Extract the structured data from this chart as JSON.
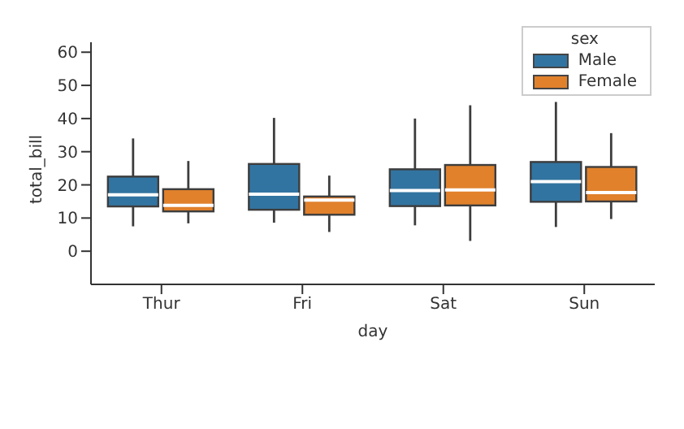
{
  "chart_data": {
    "type": "box",
    "xlabel": "day",
    "ylabel": "total_bill",
    "legend_title": "sex",
    "categories": [
      "Thur",
      "Fri",
      "Sat",
      "Sun"
    ],
    "series": [
      {
        "name": "Male",
        "color": "#3274a1",
        "boxes": [
          {
            "low": 7.5,
            "q1": 13.5,
            "median": 17,
            "q3": 22.5,
            "high": 34
          },
          {
            "low": 8.6,
            "q1": 12.5,
            "median": 17.2,
            "q3": 26.3,
            "high": 40.2
          },
          {
            "low": 7.8,
            "q1": 13.6,
            "median": 18.3,
            "q3": 24.7,
            "high": 40
          },
          {
            "low": 7.3,
            "q1": 14.9,
            "median": 21,
            "q3": 26.9,
            "high": 45
          }
        ]
      },
      {
        "name": "Female",
        "color": "#e1812c",
        "boxes": [
          {
            "low": 8.4,
            "q1": 12,
            "median": 13.8,
            "q3": 18.7,
            "high": 27.2
          },
          {
            "low": 5.8,
            "q1": 11,
            "median": 15.4,
            "q3": 16.5,
            "high": 22.8
          },
          {
            "low": 3.1,
            "q1": 13.8,
            "median": 18.5,
            "q3": 26,
            "high": 44
          },
          {
            "low": 9.7,
            "q1": 15,
            "median": 17.7,
            "q3": 25.4,
            "high": 35.6
          }
        ]
      }
    ],
    "ylim": [
      -10,
      63
    ],
    "yticks": [
      0,
      10,
      20,
      30,
      40,
      50,
      60
    ],
    "legend": "top right"
  }
}
